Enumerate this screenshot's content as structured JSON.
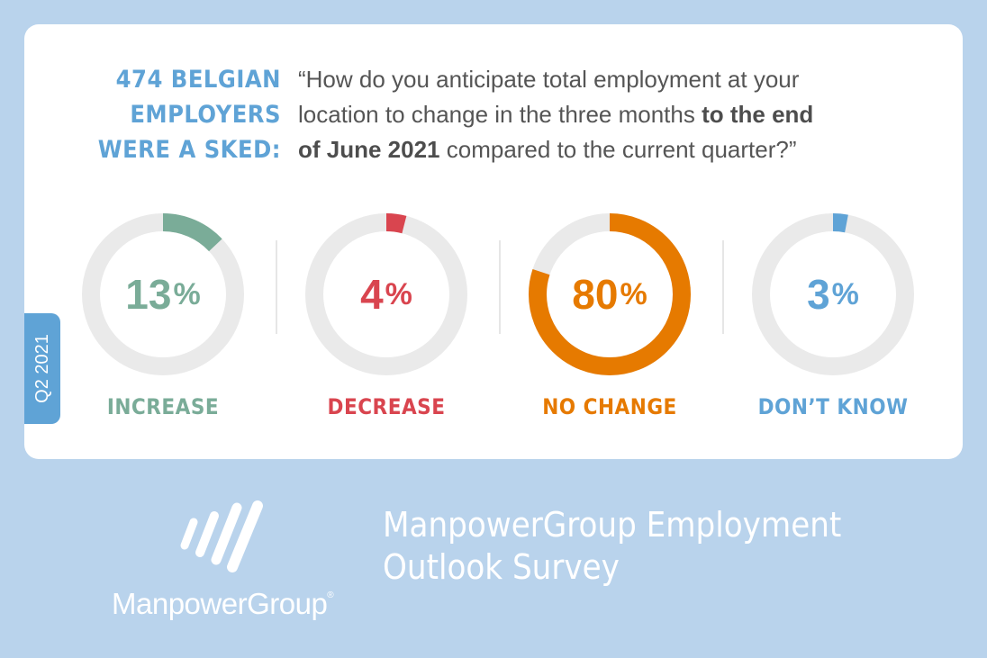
{
  "asked": {
    "line1": "474 BELGIAN",
    "line2": "EMPLOYERS",
    "line3": "WERE A SKED:"
  },
  "question": {
    "line1": "“How do you anticipate total employment at your",
    "line2_plain": "location to change in the three months ",
    "line2_bold": "to the end",
    "line3_bold": "of June 2021",
    "line3_plain": " compared to the current quarter?”"
  },
  "quarter_tab": "Q2 2021",
  "chart_data": {
    "type": "pie",
    "variant": "donut-set",
    "unit": "%",
    "categories": [
      "INCREASE",
      "DECREASE",
      "NO CHANGE",
      "DON’T KNOW"
    ],
    "values": [
      13,
      4,
      80,
      3
    ],
    "colors": [
      "#7aac98",
      "#d9454f",
      "#e67a00",
      "#5fa3d6"
    ],
    "track_color": "#eaeaea"
  },
  "footer": {
    "brand": "ManpowerGroup",
    "brand_mark": "®",
    "title_line1": "ManpowerGroup Employment",
    "title_line2": "Outlook Survey"
  }
}
